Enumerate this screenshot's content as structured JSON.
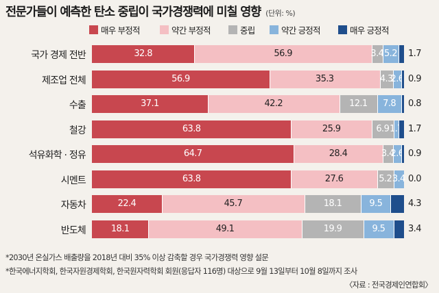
{
  "header": {
    "title": "전문가들이 예측한 탄소 중립이 국가경쟁력에 미칠 영향",
    "unit": "(단위: %)"
  },
  "colors": {
    "매우 부정적": "#c8474f",
    "약간 부정적": "#f4bfc3",
    "중립": "#b4b4b4",
    "약간 긍정적": "#88b4dc",
    "매우 긍정적": "#1f4e8c"
  },
  "chart_data": {
    "type": "bar",
    "orientation": "horizontal",
    "stacked": true,
    "title": "전문가들이 예측한 탄소 중립이 국가경쟁력에 미칠 영향",
    "unit": "(단위: %)",
    "xlim": [
      0,
      100
    ],
    "grid": false,
    "legend_position": "top",
    "categories": [
      "국가 경제 전반",
      "제조업 전체",
      "수출",
      "철강",
      "석유화학 · 정유",
      "시멘트",
      "자동차",
      "반도체"
    ],
    "series": [
      {
        "name": "매우 부정적",
        "values": [
          32.8,
          56.9,
          37.1,
          63.8,
          64.7,
          63.8,
          22.4,
          18.1
        ]
      },
      {
        "name": "약간 부정적",
        "values": [
          56.9,
          35.3,
          42.2,
          25.9,
          28.4,
          27.6,
          45.7,
          49.1
        ]
      },
      {
        "name": "중립",
        "values": [
          3.4,
          4.3,
          12.1,
          6.9,
          3.4,
          5.2,
          18.1,
          19.9
        ]
      },
      {
        "name": "약간 긍정적",
        "values": [
          5.2,
          2.6,
          7.8,
          1.7,
          2.6,
          3.4,
          9.5,
          9.5
        ]
      },
      {
        "name": "매우 긍정적",
        "values": [
          1.7,
          0.9,
          0.8,
          1.7,
          0.9,
          0.0,
          4.3,
          3.4
        ]
      }
    ]
  },
  "footnotes": [
    "*2030년 온실가스 배출량을 2018년 대비 35% 이상 감축할 경우 국가경쟁력 영향 설문",
    "*한국에너지학회, 한국자원경제학회, 한국원자력학회 회원(응답자 116명) 대상으로 9월 13일부터 10월 8일까지 조사"
  ],
  "source": "〈자료 : 전국경제인연합회〉"
}
